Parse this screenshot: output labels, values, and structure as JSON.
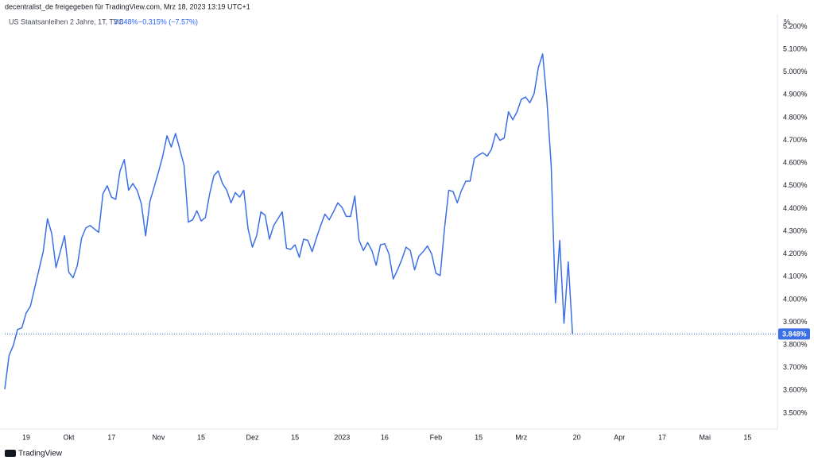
{
  "header": "decentralist_de freigegeben für TradingView.com, Mrz 18, 2023 13:19 UTC+1",
  "footer": "TradingView",
  "chart_data": {
    "type": "line",
    "title": "US Staatsanleihen 2 Jahre, 1T, TVC",
    "legend_price": "3.848%",
    "legend_change": "−0.315% (−7.57%)",
    "y_unit": "%",
    "price_label": "3.848%",
    "categories": [
      null,
      null,
      null,
      null,
      null,
      "19",
      null,
      null,
      null,
      null,
      null,
      null,
      null,
      null,
      null,
      "Okt",
      null,
      null,
      null,
      null,
      null,
      null,
      null,
      null,
      null,
      "17",
      null,
      null,
      null,
      null,
      null,
      null,
      null,
      null,
      null,
      null,
      "Nov",
      null,
      null,
      null,
      null,
      null,
      null,
      null,
      null,
      null,
      "15",
      null,
      null,
      null,
      null,
      null,
      null,
      null,
      null,
      null,
      null,
      null,
      "Dez",
      null,
      null,
      null,
      null,
      null,
      null,
      null,
      null,
      null,
      "15",
      null,
      null,
      null,
      null,
      null,
      null,
      null,
      null,
      null,
      null,
      "2023",
      null,
      null,
      null,
      null,
      null,
      null,
      null,
      null,
      null,
      "16",
      null,
      null,
      null,
      null,
      null,
      null,
      null,
      null,
      null,
      null,
      null,
      "Feb",
      null,
      null,
      null,
      null,
      null,
      null,
      null,
      null,
      null,
      "15",
      null,
      null,
      null,
      null,
      null,
      null,
      null,
      null,
      null,
      "Mrz",
      null,
      null,
      null,
      null,
      null,
      null,
      null,
      null,
      null,
      null,
      null,
      null,
      "20",
      null,
      null,
      null,
      null,
      null,
      null,
      null,
      null,
      null,
      "Apr",
      null,
      null,
      null,
      null,
      null,
      null,
      null,
      null,
      null,
      "17",
      null,
      null,
      null,
      null,
      null,
      null,
      null,
      null,
      null,
      "Mai",
      null,
      null,
      null,
      null,
      null,
      null,
      null,
      null,
      null,
      "15",
      null,
      null,
      null,
      null,
      null,
      null
    ],
    "series": [
      {
        "name": "US Staatsanleihen 2 Jahre",
        "color": "#3b6fe6",
        "values": [
          3.605,
          3.753,
          3.798,
          3.868,
          3.875,
          3.94,
          3.97,
          4.05,
          4.13,
          4.21,
          4.355,
          4.29,
          4.14,
          4.21,
          4.28,
          4.12,
          4.095,
          4.15,
          4.27,
          4.315,
          4.325,
          4.31,
          4.295,
          4.465,
          4.5,
          4.45,
          4.44,
          4.565,
          4.615,
          4.48,
          4.51,
          4.48,
          4.42,
          4.28,
          4.43,
          4.495,
          4.56,
          4.63,
          4.72,
          4.67,
          4.73,
          4.66,
          4.59,
          4.34,
          4.35,
          4.39,
          4.345,
          4.36,
          4.465,
          4.545,
          4.565,
          4.51,
          4.48,
          4.425,
          4.47,
          4.45,
          4.48,
          4.31,
          4.23,
          4.28,
          4.385,
          4.37,
          4.265,
          4.325,
          4.355,
          4.385,
          4.225,
          4.22,
          4.24,
          4.185,
          4.265,
          4.26,
          4.21,
          4.27,
          4.325,
          4.375,
          4.35,
          4.385,
          4.425,
          4.405,
          4.365,
          4.365,
          4.455,
          4.26,
          4.215,
          4.25,
          4.215,
          4.15,
          4.24,
          4.245,
          4.2,
          4.09,
          4.13,
          4.175,
          4.23,
          4.215,
          4.13,
          4.19,
          4.21,
          4.235,
          4.2,
          4.115,
          4.105,
          4.31,
          4.48,
          4.475,
          4.425,
          4.48,
          4.52,
          4.52,
          4.62,
          4.635,
          4.645,
          4.63,
          4.66,
          4.73,
          4.7,
          4.71,
          4.825,
          4.79,
          4.825,
          4.88,
          4.89,
          4.865,
          4.905,
          5.02,
          5.08,
          4.875,
          4.59,
          3.985,
          4.26,
          3.895,
          4.165,
          3.848,
          null,
          null,
          null,
          null,
          null,
          null,
          null,
          null,
          null,
          null,
          null,
          null,
          null,
          null,
          null,
          null,
          null,
          null,
          null,
          null,
          null,
          null,
          null,
          null,
          null,
          null,
          null,
          null,
          null,
          null,
          null,
          null,
          null,
          null,
          null,
          null,
          null,
          null,
          null,
          null,
          null,
          null,
          null,
          null,
          null,
          null,
          null
        ]
      }
    ],
    "ylim": [
      3.43,
      5.254
    ],
    "yticks": [
      {
        "value": 3.5,
        "label": "3.500%"
      },
      {
        "value": 3.6,
        "label": "3.600%"
      },
      {
        "value": 3.7,
        "label": "3.700%"
      },
      {
        "value": 3.8,
        "label": "3.800%"
      },
      {
        "value": 3.9,
        "label": "3.900%"
      },
      {
        "value": 4.0,
        "label": "4.000%"
      },
      {
        "value": 4.1,
        "label": "4.100%"
      },
      {
        "value": 4.2,
        "label": "4.200%"
      },
      {
        "value": 4.3,
        "label": "4.300%"
      },
      {
        "value": 4.4,
        "label": "4.400%"
      },
      {
        "value": 4.5,
        "label": "4.500%"
      },
      {
        "value": 4.6,
        "label": "4.600%"
      },
      {
        "value": 4.7,
        "label": "4.700%"
      },
      {
        "value": 4.8,
        "label": "4.800%"
      },
      {
        "value": 4.9,
        "label": "4.900%"
      },
      {
        "value": 5.0,
        "label": "5.000%"
      },
      {
        "value": 5.1,
        "label": "5.100%"
      },
      {
        "value": 5.2,
        "label": "5.200%"
      }
    ],
    "grid": false
  }
}
